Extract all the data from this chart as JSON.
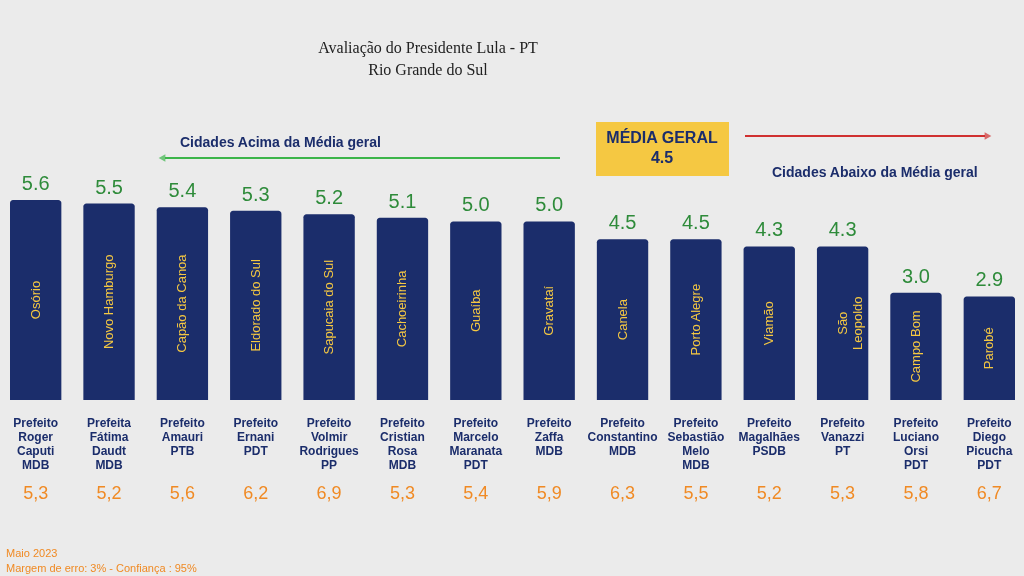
{
  "chart_data": {
    "type": "bar",
    "title": [
      "Avaliação do Presidente Lula - PT",
      "Rio Grande do Sul"
    ],
    "categories": [
      "Osório",
      "Novo Hamburgo",
      "Capão da Canoa",
      "Eldorado do Sul",
      "Sapucaia do Sul",
      "Cachoeirinha",
      "Guaíba",
      "Gravataí",
      "Canela",
      "Porto Alegre",
      "Viamão",
      "São\nLeopoldo",
      "Campo Bom",
      "Parobé"
    ],
    "values": [
      5.6,
      5.5,
      5.4,
      5.3,
      5.2,
      5.1,
      5.0,
      5.0,
      4.5,
      4.5,
      4.3,
      4.3,
      3.0,
      2.9
    ],
    "value_labels": [
      "5.6",
      "5.5",
      "5.4",
      "5.3",
      "5.2",
      "5.1",
      "5.0",
      "5.0",
      "4.5",
      "4.5",
      "4.3",
      "4.3",
      "3.0",
      "2.9"
    ],
    "color": "#1b2d6b",
    "annotations": [
      "Cidades Acima da Média geral",
      "MÉDIA GERAL\n4.5",
      "Cidades Abaixo da Média geral",
      "Maio 2023\nMargem de erro: 3% - Confiança : 95%",
      "Prefeito\nRoger\nCaputi\nMDB\n5,3",
      "Prefeita\nFátima\nDaudt\nMDB\n5,2",
      "Prefeito\nAmauri\nPTB\n5,6",
      "Prefeito\nErnani\nPDT\n6,2",
      "Prefeito\nVolmir\nRodrigues\nPP\n6,9",
      "Prefeito\nCristian\nRosa\nMDB\n5,3",
      "Prefeito\nMarcelo\nMaranata\nPDT\n5,4",
      "Prefeito\nZaffa\nMDB\n5,9",
      "Prefeito\nConstantino\nMDB\n6,3",
      "Prefeito\nSebastião\nMelo\nMDB\n5,5",
      "Prefeito\nMagalhães\nPSDB\n5,2",
      "Prefeito\nVanazzi\nPT\n5,3",
      "Prefeito\nLuciano\nOrsi\nPDT\n5,8",
      "Prefeito\nDiego\nPicucha\nPDT\n6,7"
    ]
  }
}
